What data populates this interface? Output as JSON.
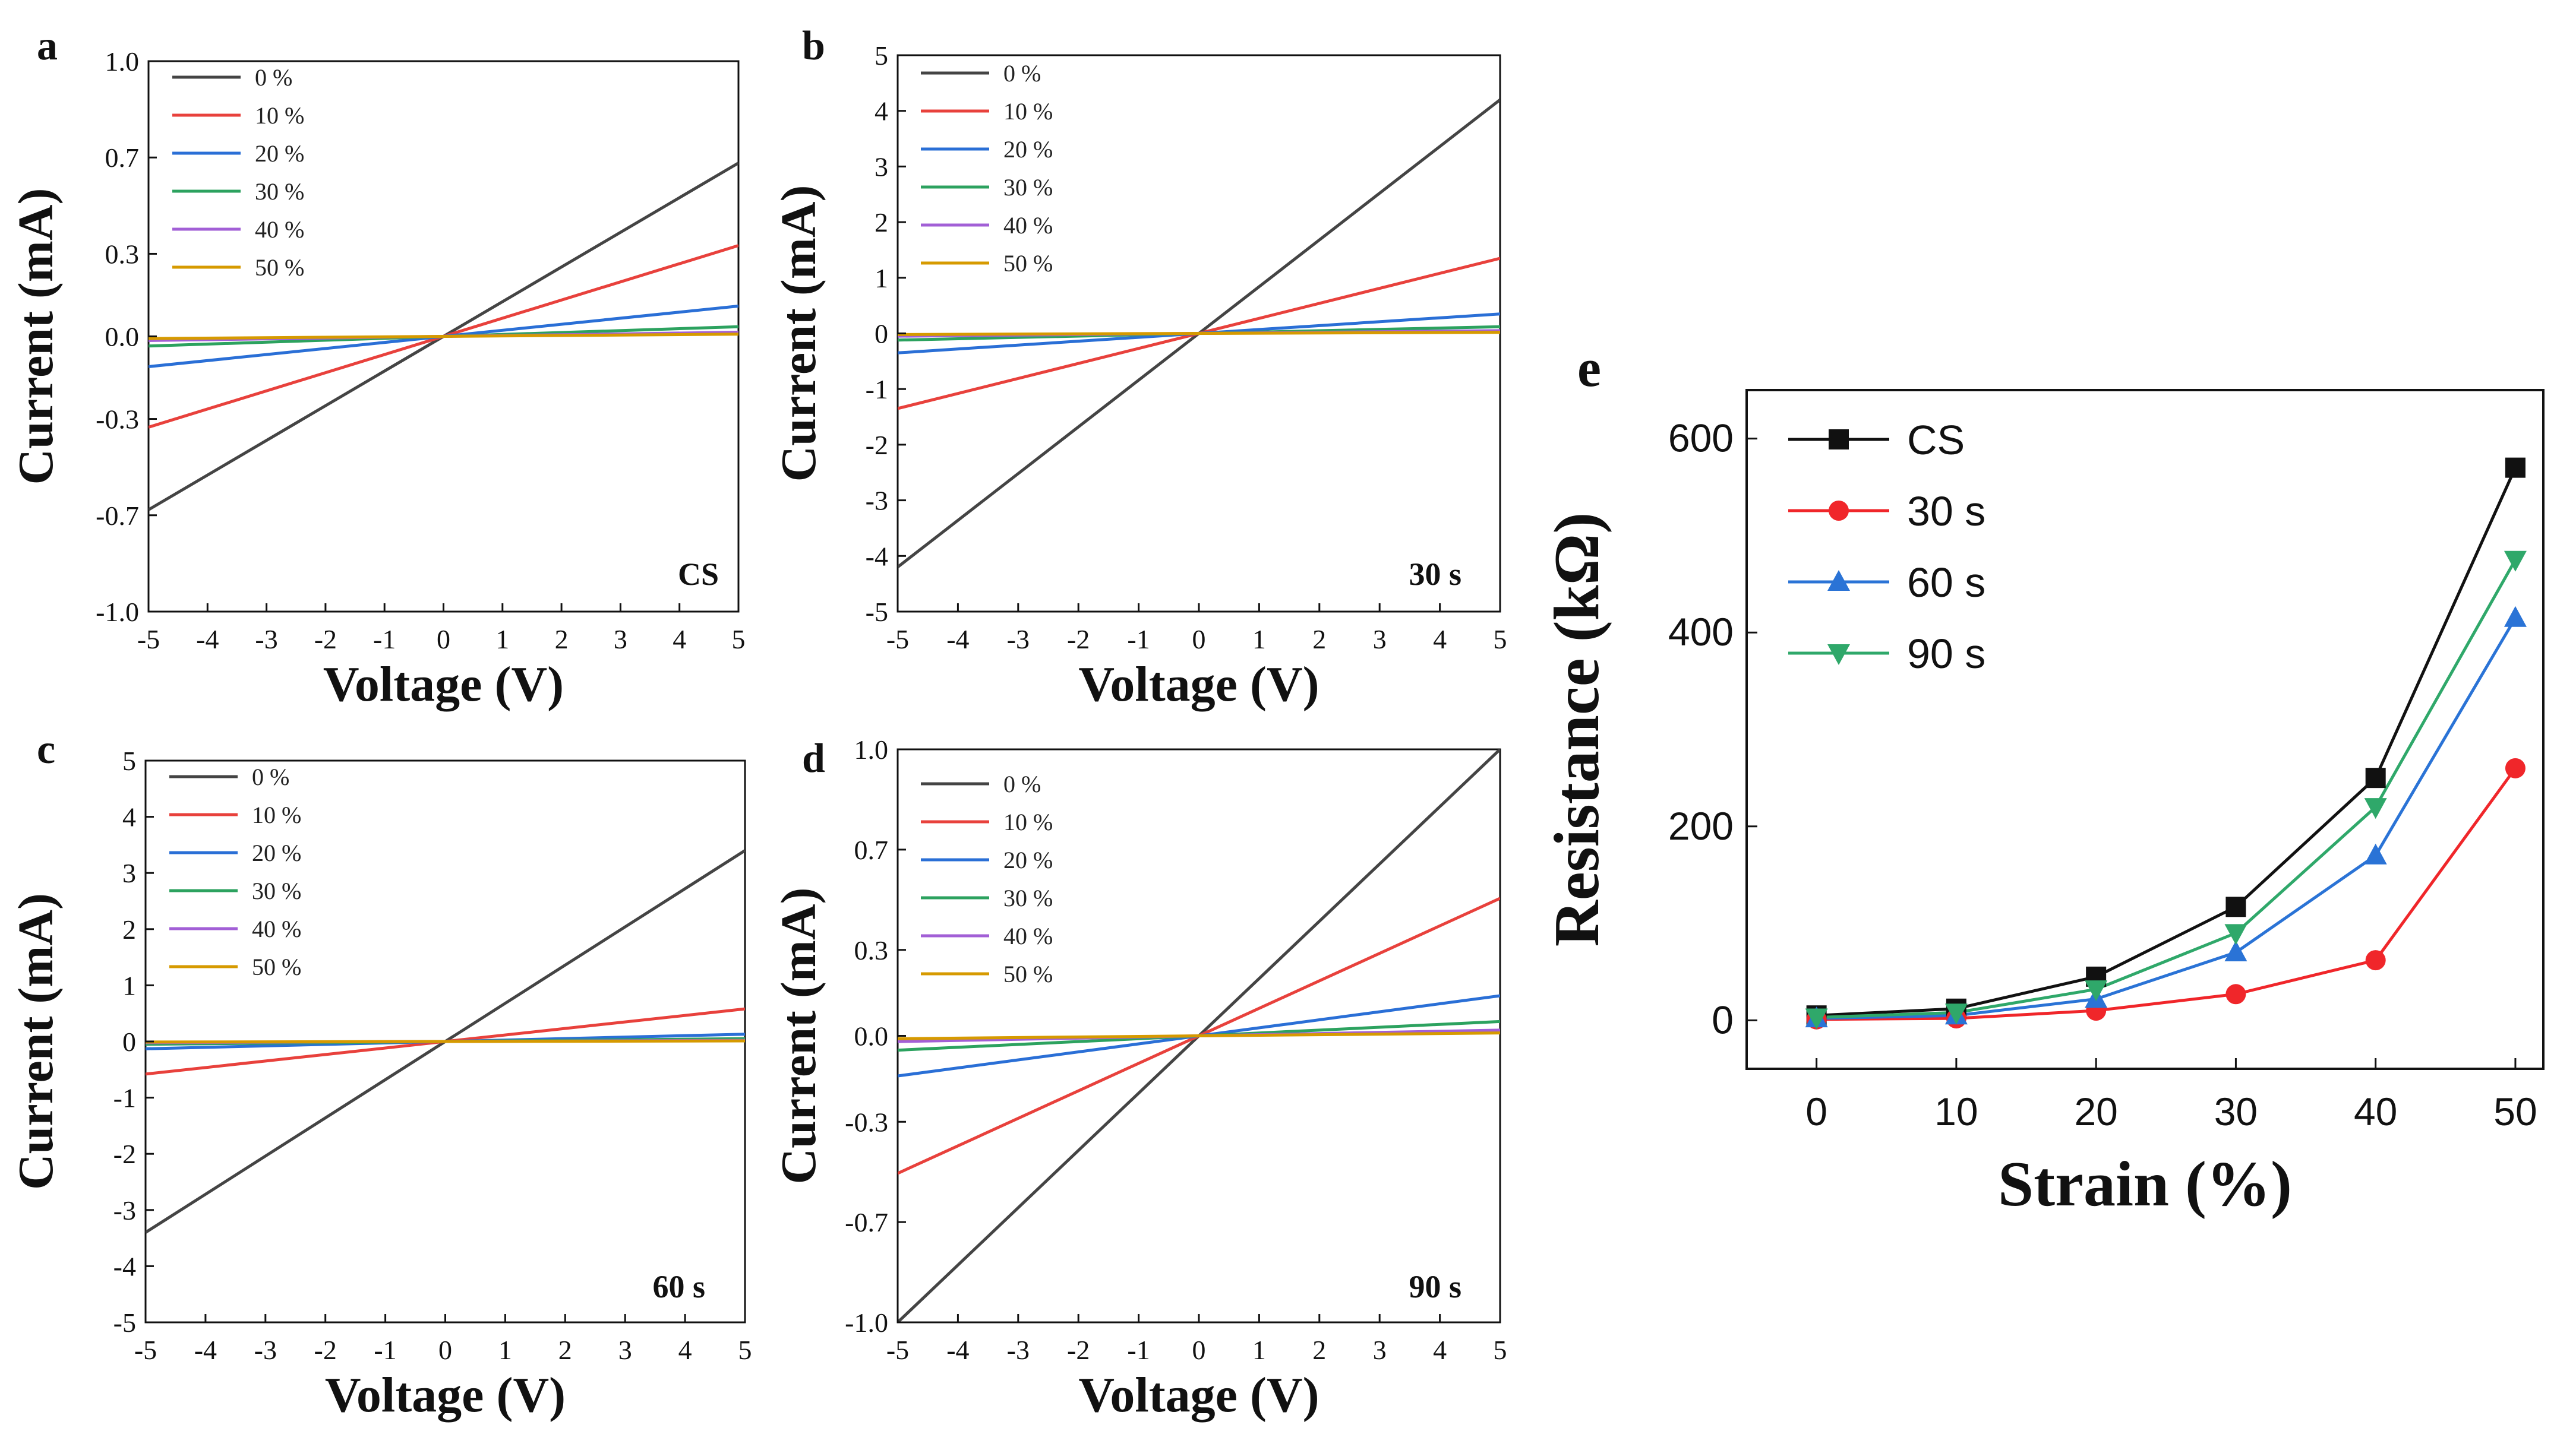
{
  "chart_data": [
    {
      "panel": "a",
      "type": "line",
      "annotation": "CS",
      "xlabel": "Voltage (V)",
      "ylabel": "Current (mA)",
      "xlim": [
        -5,
        5
      ],
      "ylim": [
        -1.0,
        1.0
      ],
      "xticks": [
        -5,
        -4,
        -3,
        -2,
        -1,
        0,
        1,
        2,
        3,
        4,
        5
      ],
      "xtick_labels": [
        "-5",
        "-4",
        "-3",
        "-2",
        "-1",
        "0",
        "1",
        "2",
        "3",
        "4",
        "5"
      ],
      "yticks": [
        -1.0,
        -0.65,
        -0.3,
        0.0,
        0.3,
        0.65,
        1.0
      ],
      "ytick_labels": [
        "-1.0",
        "-0.7",
        "-0.3",
        "0.0",
        "0.3",
        "0.7",
        "1.0"
      ],
      "legend": "top-left",
      "series": [
        {
          "name": "0  %",
          "color": "#444444",
          "x": [
            -5,
            5
          ],
          "y": [
            -0.63,
            0.63
          ]
        },
        {
          "name": "10 %",
          "color": "#e8413c",
          "x": [
            -5,
            5
          ],
          "y": [
            -0.33,
            0.33
          ]
        },
        {
          "name": "20 %",
          "color": "#2a6fd6",
          "x": [
            -5,
            5
          ],
          "y": [
            -0.11,
            0.11
          ]
        },
        {
          "name": "30 %",
          "color": "#2ca25f",
          "x": [
            -5,
            5
          ],
          "y": [
            -0.035,
            0.035
          ]
        },
        {
          "name": "40 %",
          "color": "#a25fd6",
          "x": [
            -5,
            5
          ],
          "y": [
            -0.015,
            0.015
          ]
        },
        {
          "name": "50 %",
          "color": "#d69a00",
          "x": [
            -5,
            5
          ],
          "y": [
            -0.008,
            0.008
          ]
        }
      ]
    },
    {
      "panel": "b",
      "type": "line",
      "annotation": "30 s",
      "xlabel": "Voltage (V)",
      "ylabel": "Current (mA)",
      "xlim": [
        -5,
        5
      ],
      "ylim": [
        -5,
        5
      ],
      "xticks": [
        -5,
        -4,
        -3,
        -2,
        -1,
        0,
        1,
        2,
        3,
        4,
        5
      ],
      "xtick_labels": [
        "-5",
        "-4",
        "-3",
        "-2",
        "-1",
        "0",
        "1",
        "2",
        "3",
        "4",
        "5"
      ],
      "yticks": [
        -5,
        -4,
        -3,
        -2,
        -1,
        0,
        1,
        2,
        3,
        4,
        5
      ],
      "ytick_labels": [
        "-5",
        "-4",
        "-3",
        "-2",
        "-1",
        "0",
        "1",
        "2",
        "3",
        "4",
        "5"
      ],
      "legend": "top-left",
      "series": [
        {
          "name": "0  %",
          "color": "#444444",
          "x": [
            -5,
            5
          ],
          "y": [
            -4.2,
            4.2
          ]
        },
        {
          "name": "10 %",
          "color": "#e8413c",
          "x": [
            -5,
            5
          ],
          "y": [
            -1.35,
            1.35
          ]
        },
        {
          "name": "20 %",
          "color": "#2a6fd6",
          "x": [
            -5,
            5
          ],
          "y": [
            -0.35,
            0.35
          ]
        },
        {
          "name": "30 %",
          "color": "#2ca25f",
          "x": [
            -5,
            5
          ],
          "y": [
            -0.12,
            0.12
          ]
        },
        {
          "name": "40 %",
          "color": "#a25fd6",
          "x": [
            -5,
            5
          ],
          "y": [
            -0.05,
            0.05
          ]
        },
        {
          "name": "50 %",
          "color": "#d69a00",
          "x": [
            -5,
            5
          ],
          "y": [
            -0.02,
            0.02
          ]
        }
      ]
    },
    {
      "panel": "c",
      "type": "line",
      "annotation": "60 s",
      "xlabel": "Voltage (V)",
      "ylabel": "Current (mA)",
      "xlim": [
        -5,
        5
      ],
      "ylim": [
        -5,
        5
      ],
      "xticks": [
        -5,
        -4,
        -3,
        -2,
        -1,
        0,
        1,
        2,
        3,
        4,
        5
      ],
      "xtick_labels": [
        "-5",
        "-4",
        "-3",
        "-2",
        "-1",
        "0",
        "1",
        "2",
        "3",
        "4",
        "5"
      ],
      "yticks": [
        -5,
        -4,
        -3,
        -2,
        -1,
        0,
        1,
        2,
        3,
        4,
        5
      ],
      "ytick_labels": [
        "-5",
        "-4",
        "-3",
        "-2",
        "-1",
        "0",
        "1",
        "2",
        "3",
        "4",
        "5"
      ],
      "legend": "top-left",
      "series": [
        {
          "name": "0  %",
          "color": "#444444",
          "x": [
            -5,
            5
          ],
          "y": [
            -3.4,
            3.4
          ]
        },
        {
          "name": "10 %",
          "color": "#e8413c",
          "x": [
            -5,
            5
          ],
          "y": [
            -0.58,
            0.58
          ]
        },
        {
          "name": "20 %",
          "color": "#2a6fd6",
          "x": [
            -5,
            5
          ],
          "y": [
            -0.13,
            0.13
          ]
        },
        {
          "name": "30 %",
          "color": "#2ca25f",
          "x": [
            -5,
            5
          ],
          "y": [
            -0.05,
            0.05
          ]
        },
        {
          "name": "40 %",
          "color": "#a25fd6",
          "x": [
            -5,
            5
          ],
          "y": [
            -0.02,
            0.02
          ]
        },
        {
          "name": "50 %",
          "color": "#d69a00",
          "x": [
            -5,
            5
          ],
          "y": [
            -0.01,
            0.01
          ]
        }
      ]
    },
    {
      "panel": "d",
      "type": "line",
      "annotation": "90 s",
      "xlabel": "Voltage (V)",
      "ylabel": "Current (mA)",
      "xlim": [
        -5,
        5
      ],
      "ylim": [
        -1.0,
        1.0
      ],
      "xticks": [
        -5,
        -4,
        -3,
        -2,
        -1,
        0,
        1,
        2,
        3,
        4,
        5
      ],
      "xtick_labels": [
        "-5",
        "-4",
        "-3",
        "-2",
        "-1",
        "0",
        "1",
        "2",
        "3",
        "4",
        "5"
      ],
      "yticks": [
        -1.0,
        -0.65,
        -0.3,
        0.0,
        0.3,
        0.65,
        1.0
      ],
      "ytick_labels": [
        "-1.0",
        "-0.7",
        "-0.3",
        "0.0",
        "0.3",
        "0.7",
        "1.0"
      ],
      "legend": "top-left",
      "series": [
        {
          "name": "0  %",
          "color": "#444444",
          "x": [
            -5,
            5
          ],
          "y": [
            -1.0,
            1.0
          ]
        },
        {
          "name": "10 %",
          "color": "#e8413c",
          "x": [
            -5,
            5
          ],
          "y": [
            -0.48,
            0.48
          ]
        },
        {
          "name": "20 %",
          "color": "#2a6fd6",
          "x": [
            -5,
            5
          ],
          "y": [
            -0.14,
            0.14
          ]
        },
        {
          "name": "30 %",
          "color": "#2ca25f",
          "x": [
            -5,
            5
          ],
          "y": [
            -0.05,
            0.05
          ]
        },
        {
          "name": "40 %",
          "color": "#a25fd6",
          "x": [
            -5,
            5
          ],
          "y": [
            -0.02,
            0.02
          ]
        },
        {
          "name": "50 %",
          "color": "#d69a00",
          "x": [
            -5,
            5
          ],
          "y": [
            -0.01,
            0.01
          ]
        }
      ]
    },
    {
      "panel": "e",
      "type": "line",
      "xlabel": "Strain (%)",
      "ylabel": "Resistance (kΩ)",
      "xlim": [
        -5,
        52
      ],
      "ylim": [
        -50,
        650
      ],
      "xticks": [
        0,
        10,
        20,
        30,
        40,
        50
      ],
      "xtick_labels": [
        "0",
        "10",
        "20",
        "30",
        "40",
        "50"
      ],
      "yticks": [
        0,
        200,
        400,
        600
      ],
      "ytick_labels": [
        "0",
        "200",
        "400",
        "600"
      ],
      "legend": "top-left",
      "series": [
        {
          "name": "CS",
          "color": "#111111",
          "marker": "square",
          "x": [
            0,
            10,
            20,
            30,
            40,
            50
          ],
          "y": [
            5,
            12,
            45,
            117,
            250,
            570
          ]
        },
        {
          "name": "30 s",
          "color": "#f0262a",
          "marker": "circle",
          "x": [
            0,
            10,
            20,
            30,
            40,
            50
          ],
          "y": [
            1,
            2,
            10,
            27,
            62,
            260
          ]
        },
        {
          "name": "60 s",
          "color": "#2a73d6",
          "marker": "triangle-up",
          "x": [
            0,
            10,
            20,
            30,
            40,
            50
          ],
          "y": [
            2,
            5,
            22,
            70,
            170,
            415
          ]
        },
        {
          "name": "90 s",
          "color": "#2fa86a",
          "marker": "triangle-down",
          "x": [
            0,
            10,
            20,
            30,
            40,
            50
          ],
          "y": [
            3,
            8,
            32,
            90,
            220,
            475
          ]
        }
      ]
    }
  ]
}
